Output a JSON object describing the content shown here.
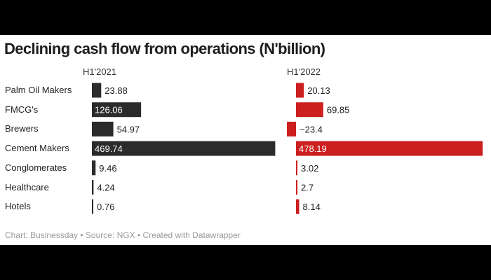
{
  "chart_data": {
    "type": "bar",
    "orientation": "horizontal",
    "title": "Declining cash flow from operations (N'billion)",
    "categories": [
      "Palm Oil Makers",
      "FMCG's",
      "Brewers",
      "Cement Makers",
      "Conglomerates",
      "Healthcare",
      "Hotels"
    ],
    "series": [
      {
        "name": "H1'2021",
        "color": "#2b2b2b",
        "values": [
          23.88,
          126.06,
          54.97,
          469.74,
          9.46,
          4.24,
          0.76
        ],
        "labels": [
          "23.88",
          "126.06",
          "54.97",
          "469.74",
          "9.46",
          "4.24",
          "0.76"
        ]
      },
      {
        "name": "H1'2022",
        "color": "#cc1f1f",
        "values": [
          20.13,
          69.85,
          -23.4,
          478.19,
          3.02,
          2.7,
          8.14
        ],
        "labels": [
          "20.13",
          "69.85",
          "−23.4",
          "478.19",
          "3.02",
          "2.7",
          "8.14"
        ]
      }
    ],
    "grid": false,
    "legend": "none",
    "footer": "Chart: Businessday • Source: NGX • Created with Datawrapper"
  }
}
